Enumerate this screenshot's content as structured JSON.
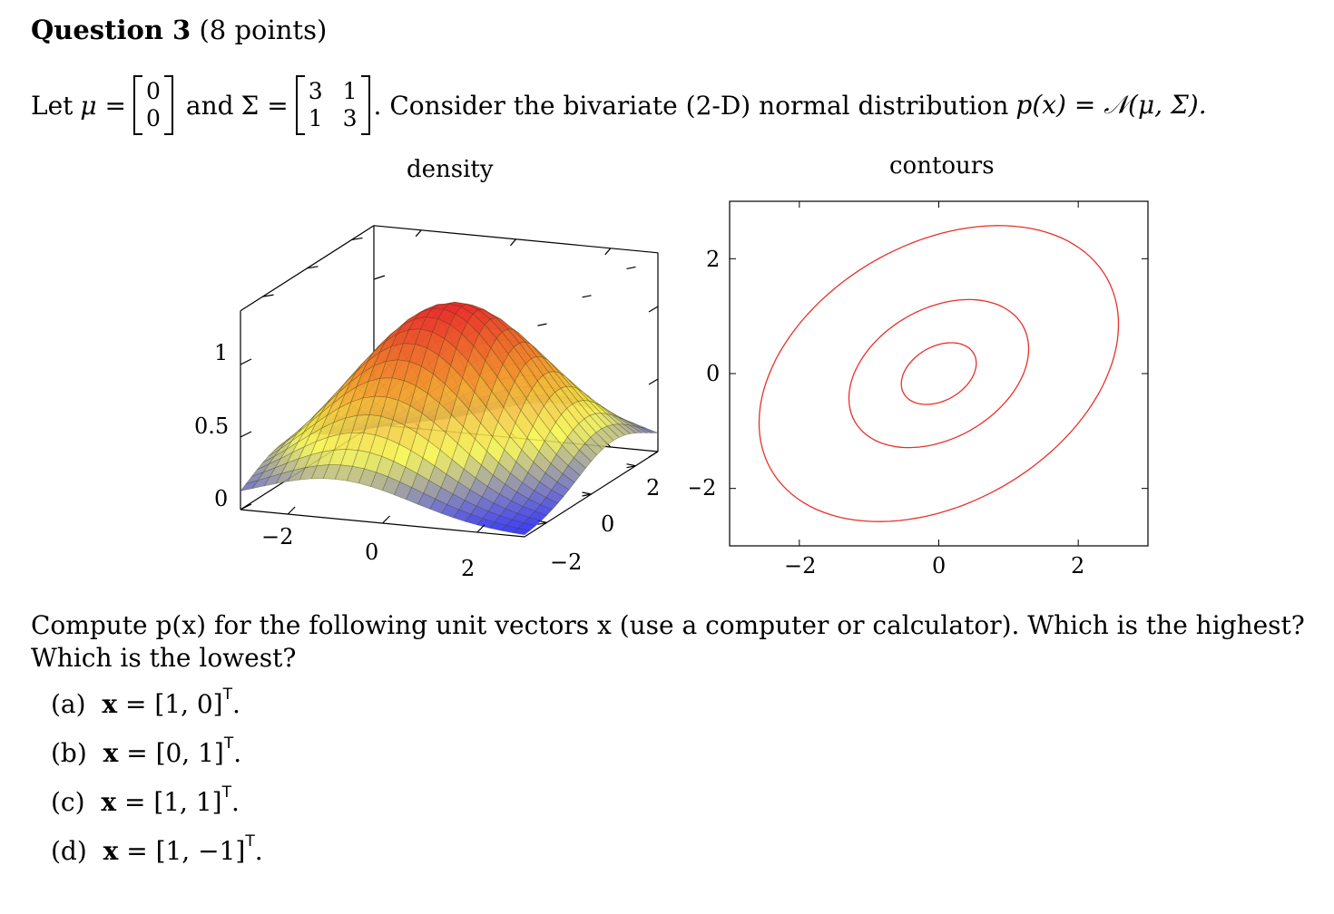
{
  "question": {
    "label": "Question 3",
    "points": "(8 points)"
  },
  "intro": {
    "let": "Let",
    "mu_symbol": "μ =",
    "mu_vector": [
      "0",
      "0"
    ],
    "and_text": "and",
    "sigma_symbol": "Σ =",
    "sigma_matrix": [
      [
        "3",
        "1"
      ],
      [
        "1",
        "3"
      ]
    ],
    "statement": ". Consider the bivariate (2-D) normal distribution",
    "formula": "p(x) = 𝒩(μ, Σ)."
  },
  "figures": {
    "density": {
      "title": "density",
      "z_ticks": [
        "1",
        "0.5",
        "0"
      ],
      "x_ticks": [
        "−2",
        "0",
        "2"
      ],
      "y_ticks": [
        "−2",
        "0",
        "2"
      ]
    },
    "contours": {
      "title": "contours",
      "x_ticks": [
        "−2",
        "0",
        "2"
      ],
      "y_ticks": [
        "2",
        "0",
        "−2"
      ],
      "line_color": "#e8302a"
    }
  },
  "chart_data": [
    {
      "type": "surface",
      "title": "density",
      "function": "bivariate normal, mu=[0,0], Sigma=[[3,1],[1,3]] (scaled)",
      "x_range": [
        -3,
        3
      ],
      "y_range": [
        -3,
        3
      ],
      "z_ticks": [
        0,
        0.5,
        1
      ],
      "colormap": [
        "#1a1aff",
        "#f5f54a",
        "#f08a2a",
        "#e8262a"
      ]
    },
    {
      "type": "contour",
      "title": "contours",
      "xlim": [
        -3,
        3
      ],
      "ylim": [
        -3,
        3
      ],
      "x_ticks": [
        -2,
        0,
        2
      ],
      "y_ticks": [
        -2,
        0,
        2
      ],
      "levels_mahalanobis": [
        0.5,
        1.2,
        2.4
      ],
      "covariance": [
        [
          3,
          1
        ],
        [
          1,
          3
        ]
      ],
      "mean": [
        0,
        0
      ]
    }
  ],
  "question_text": "Compute p(x) for the following unit vectors x (use a computer or calculator). Which is the highest? Which is the lowest?",
  "options": [
    {
      "label": "(a)",
      "vector": "[1, 0]"
    },
    {
      "label": "(b)",
      "vector": "[0, 1]"
    },
    {
      "label": "(c)",
      "vector": "[1, 1]"
    },
    {
      "label": "(d)",
      "vector": "[1, −1]"
    }
  ],
  "transpose": "T"
}
